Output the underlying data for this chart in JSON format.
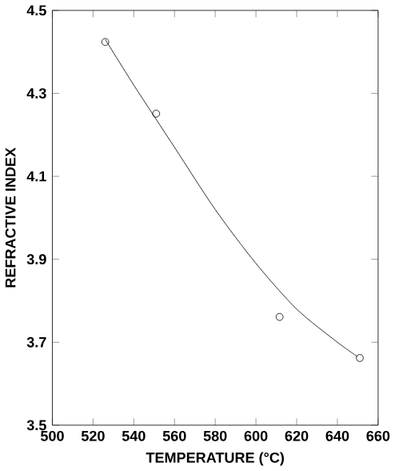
{
  "chart_data": {
    "type": "scatter",
    "xlabel": "TEMPERATURE (°C)",
    "ylabel": "REFRACTIVE INDEX",
    "xlim": [
      500,
      660
    ],
    "xticks": [
      500,
      520,
      540,
      560,
      580,
      600,
      620,
      640,
      660
    ],
    "ylim": [
      3.5,
      4.5
    ],
    "yticks": [
      3.5,
      3.7,
      3.9,
      4.1,
      4.3,
      4.5
    ],
    "series": [
      {
        "color": "#000000",
        "marker": "circle",
        "x": [
          526,
          551,
          611.6,
          651
        ],
        "values": [
          4.424,
          4.251,
          3.761,
          3.662
        ]
      },
      {
        "type": "line",
        "color": "#000000",
        "marker": "none",
        "line_style": "solid",
        "x": [
          526,
          540,
          560,
          580,
          600,
          620,
          640,
          650
        ],
        "values": [
          4.43,
          4.32,
          4.17,
          4.02,
          3.89,
          3.78,
          3.7,
          3.665
        ]
      }
    ]
  }
}
